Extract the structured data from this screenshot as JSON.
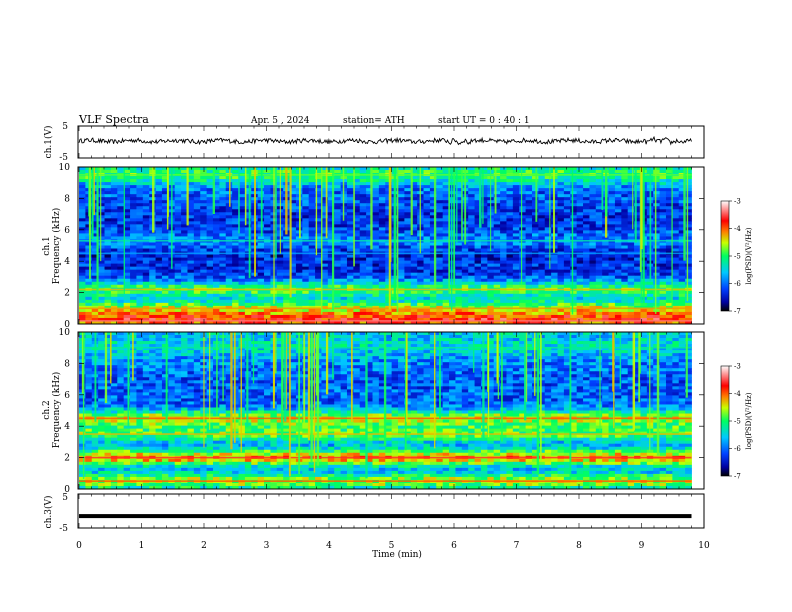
{
  "header": {
    "title": "VLF  Spectra",
    "date": "Apr. 5  , 2024",
    "station": "station= ATH",
    "start_ut": "start  UT  =    0  : 40 : 1"
  },
  "chart_data": {
    "type": "heatmap",
    "x_axis": {
      "label": "Time  (min)",
      "range": [
        0,
        10
      ],
      "ticks": [
        "0",
        "1",
        "2",
        "3",
        "4",
        "5",
        "6",
        "7",
        "8",
        "9",
        "10"
      ],
      "data_end": 9.8
    },
    "panels": [
      {
        "id": "ch1-waveform",
        "kind": "line",
        "ylabel": "ch.1(V)",
        "ylim": [
          -5,
          5
        ],
        "yticks": [
          "5",
          "-5"
        ],
        "baseline": 0.3,
        "amplitude": 0.7
      },
      {
        "id": "ch1-spectrogram",
        "kind": "heatmap",
        "ylabel": "Frequency (kHz)",
        "ylabel_channel": "ch.1",
        "ylim": [
          0,
          10
        ],
        "yticks": [
          "0",
          "2",
          "4",
          "6",
          "8",
          "10"
        ],
        "bands": [
          {
            "f": 0.2,
            "level": -4.0
          },
          {
            "f": 1.0,
            "level": -4.8
          },
          {
            "f": 2.2,
            "level": -4.9
          },
          {
            "f": 4.5,
            "level": -6.4
          },
          {
            "f": 5.3,
            "level": -5.9
          },
          {
            "f": 9.5,
            "level": -5.4
          }
        ],
        "colorbar": {
          "label": "log(PSD)(V²/Hz)",
          "ticks": [
            "-3",
            "-4",
            "-5",
            "-6",
            "-7"
          ],
          "range": [
            -7,
            -3
          ]
        }
      },
      {
        "id": "ch2-spectrogram",
        "kind": "heatmap",
        "ylabel": "Frequency (kHz)",
        "ylabel_channel": "ch.2",
        "ylim": [
          0,
          10
        ],
        "yticks": [
          "0",
          "2",
          "4",
          "6",
          "8",
          "10"
        ],
        "bands": [
          {
            "f": 0.5,
            "level": -4.6
          },
          {
            "f": 2.0,
            "level": -4.2
          },
          {
            "f": 3.5,
            "level": -4.9
          },
          {
            "f": 4.5,
            "level": -4.6
          },
          {
            "f": 9.0,
            "level": -5.8
          }
        ],
        "colorbar": {
          "label": "log(PSD)(V²/Hz)",
          "ticks": [
            "-3",
            "-4",
            "-5",
            "-6",
            "-7"
          ],
          "range": [
            -7,
            -3
          ]
        }
      },
      {
        "id": "ch3-waveform",
        "kind": "line",
        "ylabel": "ch.3(V)",
        "ylim": [
          -5,
          5
        ],
        "yticks": [
          "5",
          "-5"
        ],
        "baseline": -1.5,
        "amplitude": 0.05
      }
    ],
    "colors": {
      "trace": "#000000",
      "colormap": [
        "#000000",
        "#0000ff",
        "#00c8ff",
        "#00ff66",
        "#ffff00",
        "#ff0000",
        "#ffffff"
      ]
    }
  }
}
